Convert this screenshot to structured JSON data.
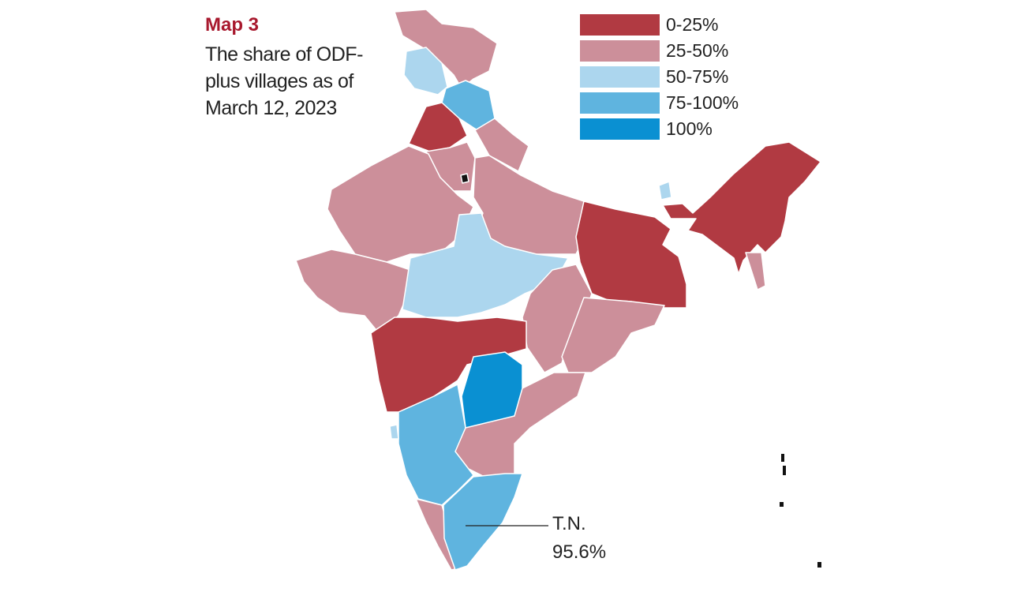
{
  "title": "Map 3",
  "subtitle": "The share of ODF-plus villages as of March 12, 2023",
  "legend": [
    {
      "label": "0-25%",
      "color": "#b13a42"
    },
    {
      "label": "25-50%",
      "color": "#cc8f9a"
    },
    {
      "label": "50-75%",
      "color": "#acd6ee"
    },
    {
      "label": "75-100%",
      "color": "#5fb4df"
    },
    {
      "label": "100%",
      "color": "#0a90d2"
    }
  ],
  "annotation": {
    "state": "T.N.",
    "value": "95.6%"
  }
}
